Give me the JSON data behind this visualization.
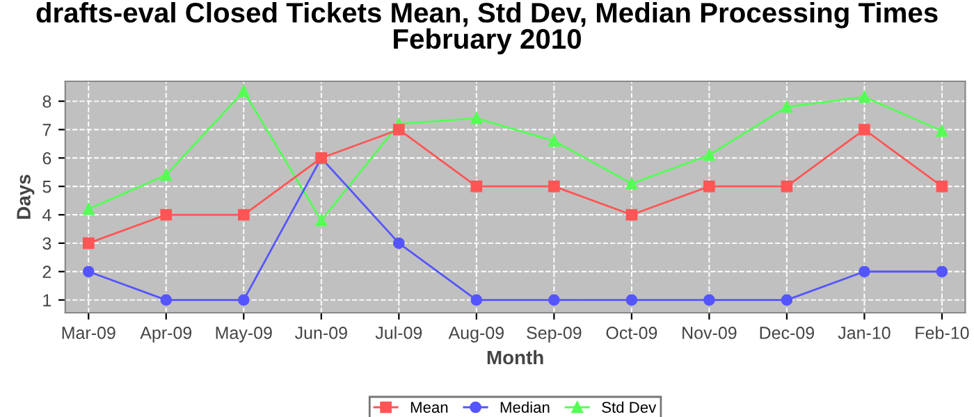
{
  "chart_data": {
    "type": "line",
    "title": "drafts-eval Closed Tickets Mean, Std Dev, Median Processing Times\nFebruary 2010",
    "xlabel": "Month",
    "ylabel": "Days",
    "categories": [
      "Mar-09",
      "Apr-09",
      "May-09",
      "Jun-09",
      "Jul-09",
      "Aug-09",
      "Sep-09",
      "Oct-09",
      "Nov-09",
      "Dec-09",
      "Jan-10",
      "Feb-10"
    ],
    "series": [
      {
        "name": "Mean",
        "color": "#ff5555",
        "marker": "square",
        "values": [
          3,
          4,
          4,
          6,
          7,
          5,
          5,
          4,
          5,
          5,
          7,
          5
        ]
      },
      {
        "name": "Median",
        "color": "#5555ff",
        "marker": "circle",
        "values": [
          2,
          1,
          1,
          6,
          3,
          1,
          1,
          1,
          1,
          1,
          2,
          2
        ]
      },
      {
        "name": "Std Dev",
        "color": "#55ff55",
        "marker": "triangle",
        "values": [
          4.2,
          5.4,
          8.35,
          3.8,
          7.2,
          7.4,
          6.6,
          5.1,
          6.1,
          7.8,
          8.15,
          6.95
        ]
      }
    ],
    "ylim": [
      0.55,
      8.7
    ],
    "yticks": [
      1,
      2,
      3,
      4,
      5,
      6,
      7,
      8
    ],
    "grid": true,
    "legend": "bottom"
  }
}
